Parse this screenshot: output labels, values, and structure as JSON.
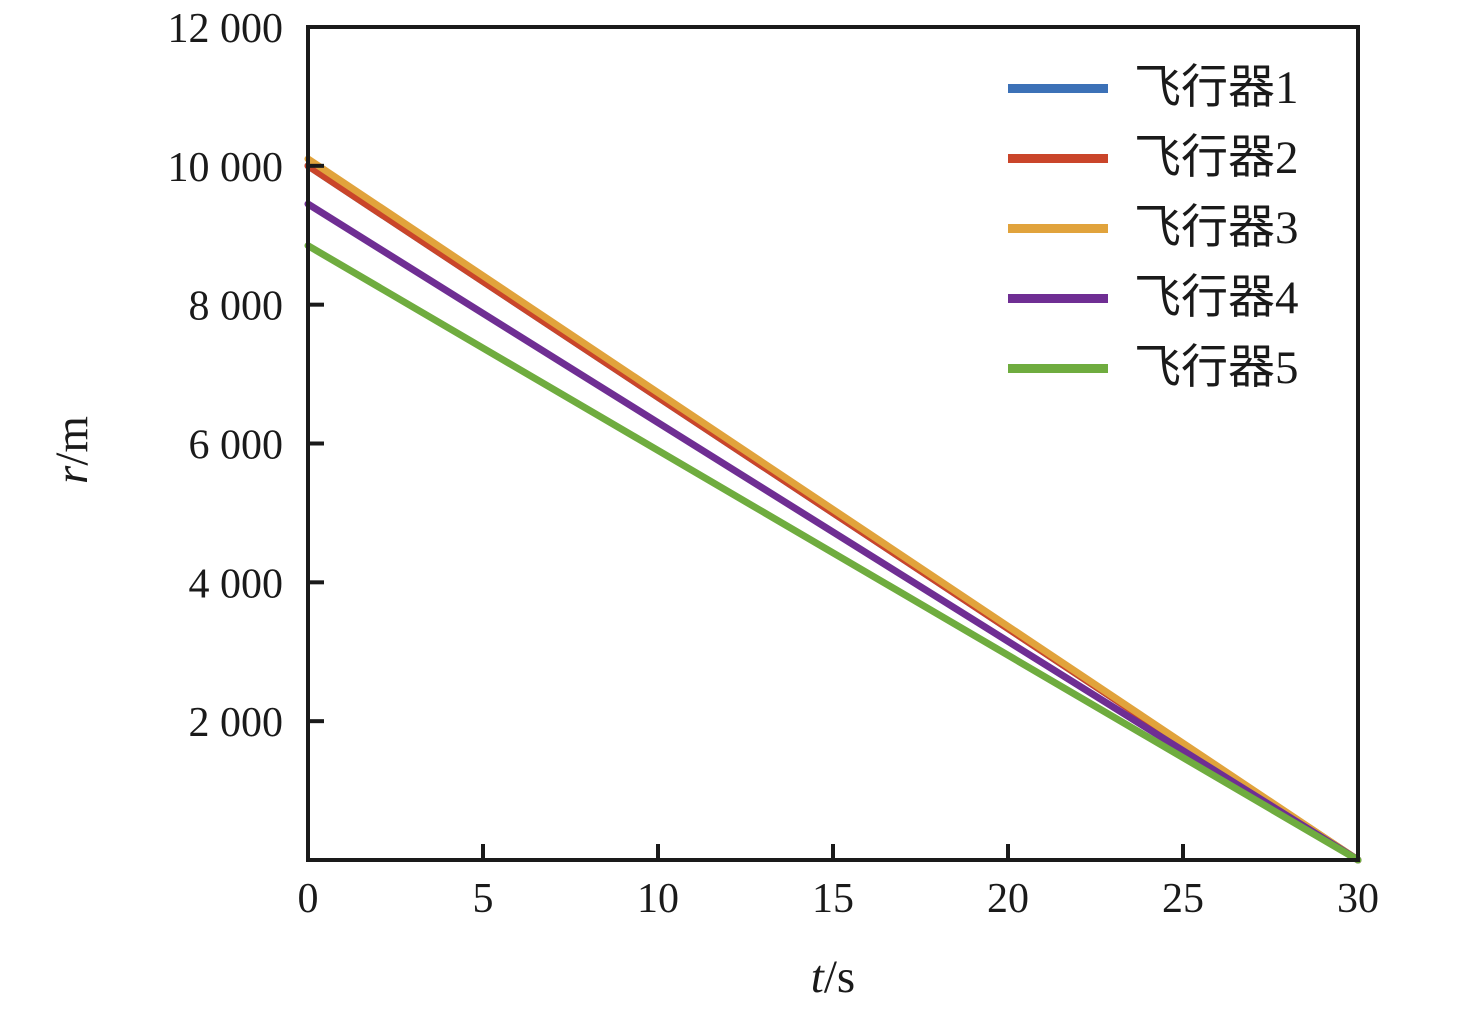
{
  "chart_data": {
    "type": "line",
    "title": "",
    "xlabel_var": "t",
    "xlabel_unit": "/s",
    "ylabel_var": "r",
    "ylabel_unit": "/m",
    "xlim": [
      0,
      30
    ],
    "ylim": [
      0,
      12000
    ],
    "grid": false,
    "legend_position": "upper right",
    "x_ticks": [
      {
        "v": 0,
        "label": "0"
      },
      {
        "v": 5,
        "label": "5"
      },
      {
        "v": 10,
        "label": "10"
      },
      {
        "v": 15,
        "label": "15"
      },
      {
        "v": 20,
        "label": "20"
      },
      {
        "v": 25,
        "label": "25"
      },
      {
        "v": 30,
        "label": "30"
      }
    ],
    "y_ticks": [
      {
        "v": 2000,
        "label": "2 000"
      },
      {
        "v": 4000,
        "label": "4 000"
      },
      {
        "v": 6000,
        "label": "6 000"
      },
      {
        "v": 8000,
        "label": "8 000"
      },
      {
        "v": 10000,
        "label": "10 000"
      },
      {
        "v": 12000,
        "label": "12 000"
      }
    ],
    "series": [
      {
        "name": "飞行器1",
        "color": "#3c71b7",
        "x": [
          0,
          30
        ],
        "y": [
          10000,
          0
        ]
      },
      {
        "name": "飞行器2",
        "color": "#ca452a",
        "x": [
          0,
          30
        ],
        "y": [
          10000,
          0
        ]
      },
      {
        "name": "飞行器3",
        "color": "#e1a33c",
        "x": [
          0,
          30
        ],
        "y": [
          10100,
          0
        ]
      },
      {
        "name": "飞行器4",
        "color": "#6f2e93",
        "x": [
          0,
          30
        ],
        "y": [
          9450,
          0
        ]
      },
      {
        "name": "飞行器5",
        "color": "#6fac3f",
        "x": [
          0,
          30
        ],
        "y": [
          8850,
          0
        ]
      }
    ],
    "axis_color": "#1a1a1a"
  }
}
